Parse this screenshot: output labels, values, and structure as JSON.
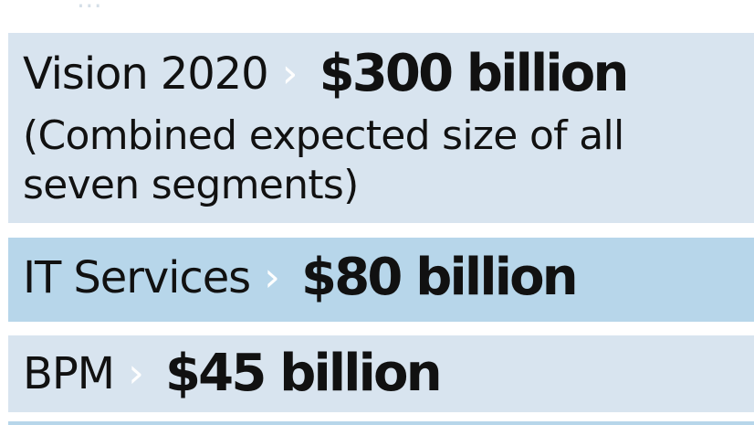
{
  "faded_header_text": "...",
  "segments": [
    {
      "name": "Vision 2020",
      "value": "$300 billion",
      "note": "(Combined expected size of all seven segments)"
    },
    {
      "name": "IT Services",
      "value": "$80 billion"
    },
    {
      "name": "BPM",
      "value": "$45 billion"
    }
  ],
  "icons": {
    "arrow": "chevron-right-icon"
  },
  "colors": {
    "light_row": "#d8e4ef",
    "accent_row": "#b7d6ea",
    "text": "#111111",
    "arrow": "#ffffff"
  }
}
